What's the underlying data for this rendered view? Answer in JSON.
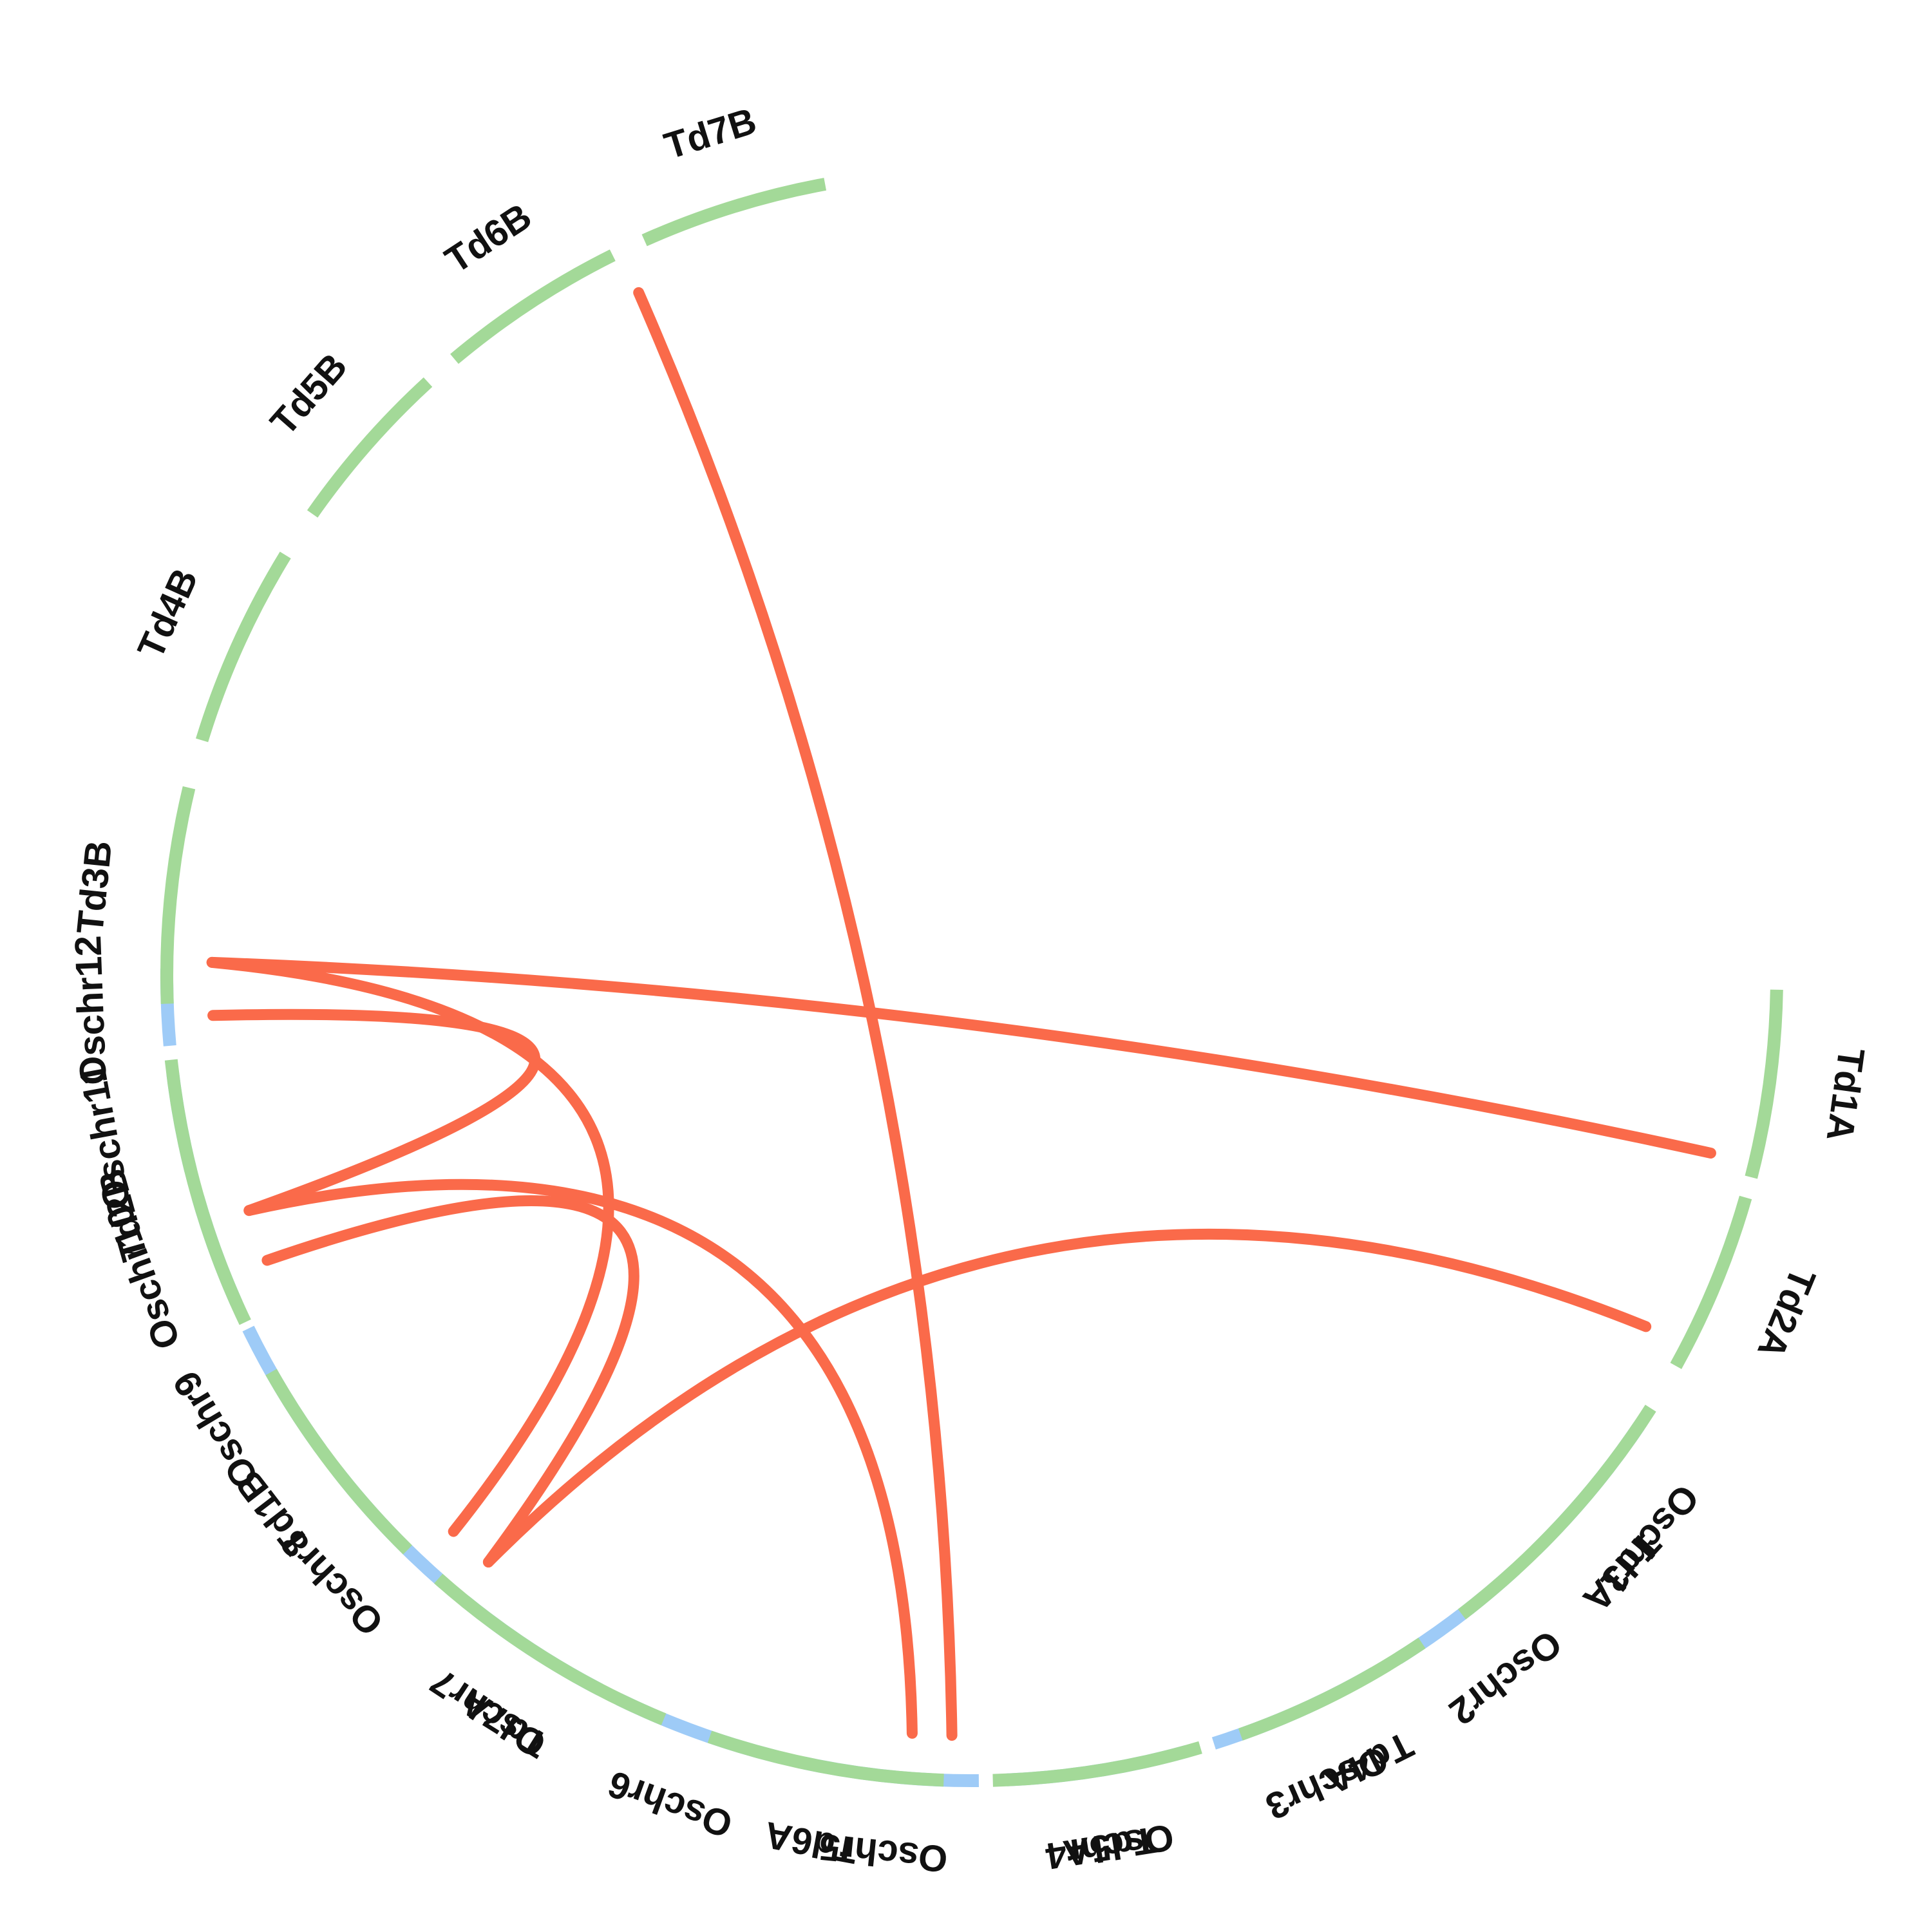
{
  "colors": {
    "rice_chromosome": "#9ecbf7",
    "wheat_chromosome": "#a3d998",
    "link": "#fa6a4a",
    "label": "#111111"
  },
  "chromosomes": [
    {
      "id": "oschr1",
      "label": "Oschr1",
      "group": "rice"
    },
    {
      "id": "oschr2",
      "label": "Oschr2",
      "group": "rice"
    },
    {
      "id": "oschr3",
      "label": "Oschr3",
      "group": "rice"
    },
    {
      "id": "oschr4",
      "label": "Oschr4",
      "group": "rice"
    },
    {
      "id": "oschr5",
      "label": "Oschr5",
      "group": "rice"
    },
    {
      "id": "oschr6",
      "label": "Oschr6",
      "group": "rice"
    },
    {
      "id": "oschr7",
      "label": "Oschr7",
      "group": "rice"
    },
    {
      "id": "oschr8",
      "label": "Oschr8",
      "group": "rice"
    },
    {
      "id": "oschr9",
      "label": "Oschr9",
      "group": "rice"
    },
    {
      "id": "oschr10",
      "label": "Oschr10",
      "group": "rice"
    },
    {
      "id": "oschr11",
      "label": "Oschr11",
      "group": "rice"
    },
    {
      "id": "oschr12",
      "label": "Oschr12",
      "group": "rice"
    },
    {
      "id": "td1a",
      "label": "Td1A",
      "group": "wheat"
    },
    {
      "id": "td2a",
      "label": "Td2A",
      "group": "wheat"
    },
    {
      "id": "td3a",
      "label": "Td3A",
      "group": "wheat"
    },
    {
      "id": "td4a",
      "label": "Td4A",
      "group": "wheat"
    },
    {
      "id": "td5a",
      "label": "Td5A",
      "group": "wheat"
    },
    {
      "id": "td6a",
      "label": "Td6A",
      "group": "wheat"
    },
    {
      "id": "td7a",
      "label": "Td7A",
      "group": "wheat"
    },
    {
      "id": "td1b",
      "label": "Td1B",
      "group": "wheat"
    },
    {
      "id": "td2b",
      "label": "Td2B",
      "group": "wheat"
    },
    {
      "id": "td3b",
      "label": "Td3B",
      "group": "wheat"
    },
    {
      "id": "td4b",
      "label": "Td4B",
      "group": "wheat"
    },
    {
      "id": "td5b",
      "label": "Td5B",
      "group": "wheat"
    },
    {
      "id": "td6b",
      "label": "Td6B",
      "group": "wheat"
    },
    {
      "id": "td7b",
      "label": "Td7B",
      "group": "wheat"
    }
  ],
  "links": [
    {
      "from": "Oschr9",
      "to": "Td5A"
    },
    {
      "from": "Oschr4",
      "to": "Td2A"
    },
    {
      "from": "Oschr4",
      "to": "Td2B"
    },
    {
      "from": "Oschr3",
      "to": "Td5A"
    },
    {
      "from": "Oschr3",
      "to": "Td4B"
    },
    {
      "from": "Oschr1",
      "to": "Td3A"
    },
    {
      "from": "Oschr1",
      "to": "Td3B"
    }
  ]
}
